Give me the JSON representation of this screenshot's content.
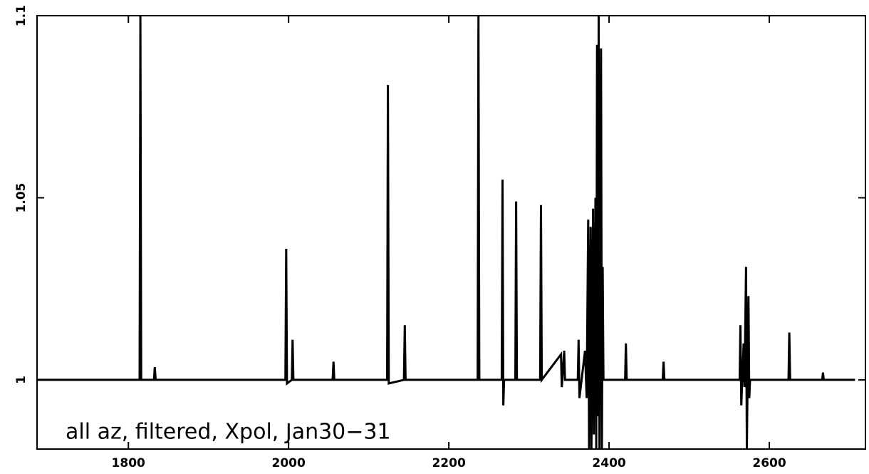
{
  "chart_data": {
    "type": "line",
    "annotation": "all az, filtered, Xpol, Jan30−31",
    "series": [
      {
        "color": "#000000",
        "x": [
          1686,
          1814,
          1815,
          1816,
          1832,
          1833,
          1834,
          1996,
          1997,
          1998,
          2004,
          2005,
          2006,
          2055,
          2056,
          2057,
          2123,
          2124,
          2125,
          2144,
          2145,
          2146,
          2236,
          2237,
          2238,
          2266,
          2267,
          2268,
          2269,
          2283,
          2284,
          2285,
          2314,
          2315,
          2316,
          2340,
          2341,
          2344,
          2345,
          2361,
          2362,
          2363,
          2370,
          2372,
          2374,
          2375,
          2377,
          2378,
          2380,
          2381,
          2383,
          2384,
          2385,
          2386,
          2387,
          2388,
          2390,
          2391,
          2392,
          2393,
          2420,
          2421,
          2422,
          2467,
          2468,
          2469,
          2563,
          2564,
          2565,
          2568,
          2569,
          2571,
          2572,
          2574,
          2575,
          2576,
          2624,
          2625,
          2626,
          2666,
          2667,
          2668,
          2707
        ],
        "values": [
          1,
          1,
          1.1,
          1,
          1,
          1.0035,
          1,
          1,
          1.036,
          0.999,
          1,
          1.011,
          1,
          1,
          1.005,
          1,
          1,
          1.081,
          0.999,
          1,
          1.015,
          1,
          1,
          1.1,
          1,
          1,
          1.055,
          0.993,
          1,
          1,
          1.049,
          1,
          1,
          1.048,
          1,
          1.007,
          0.998,
          1.008,
          1,
          1,
          1.011,
          0.995,
          1.008,
          0.995,
          1.044,
          0.981,
          1.042,
          0.981,
          1.047,
          0.985,
          1.05,
          0.981,
          1.092,
          0.99,
          1.1,
          0.981,
          1.091,
          0.981,
          1.031,
          1,
          1,
          1.01,
          1,
          1,
          1.005,
          1,
          1,
          1.015,
          0.993,
          1.01,
          0.998,
          1.031,
          0.981,
          1.023,
          0.995,
          1,
          1,
          1.013,
          1,
          1,
          1.002,
          1,
          1
        ]
      }
    ],
    "xlim": [
      1686,
      2720
    ],
    "xticks": [
      1800,
      2000,
      2200,
      2400,
      2600
    ],
    "ylim": [
      0.981,
      1.1
    ],
    "yticks": [
      1,
      1.05,
      1.1
    ]
  }
}
